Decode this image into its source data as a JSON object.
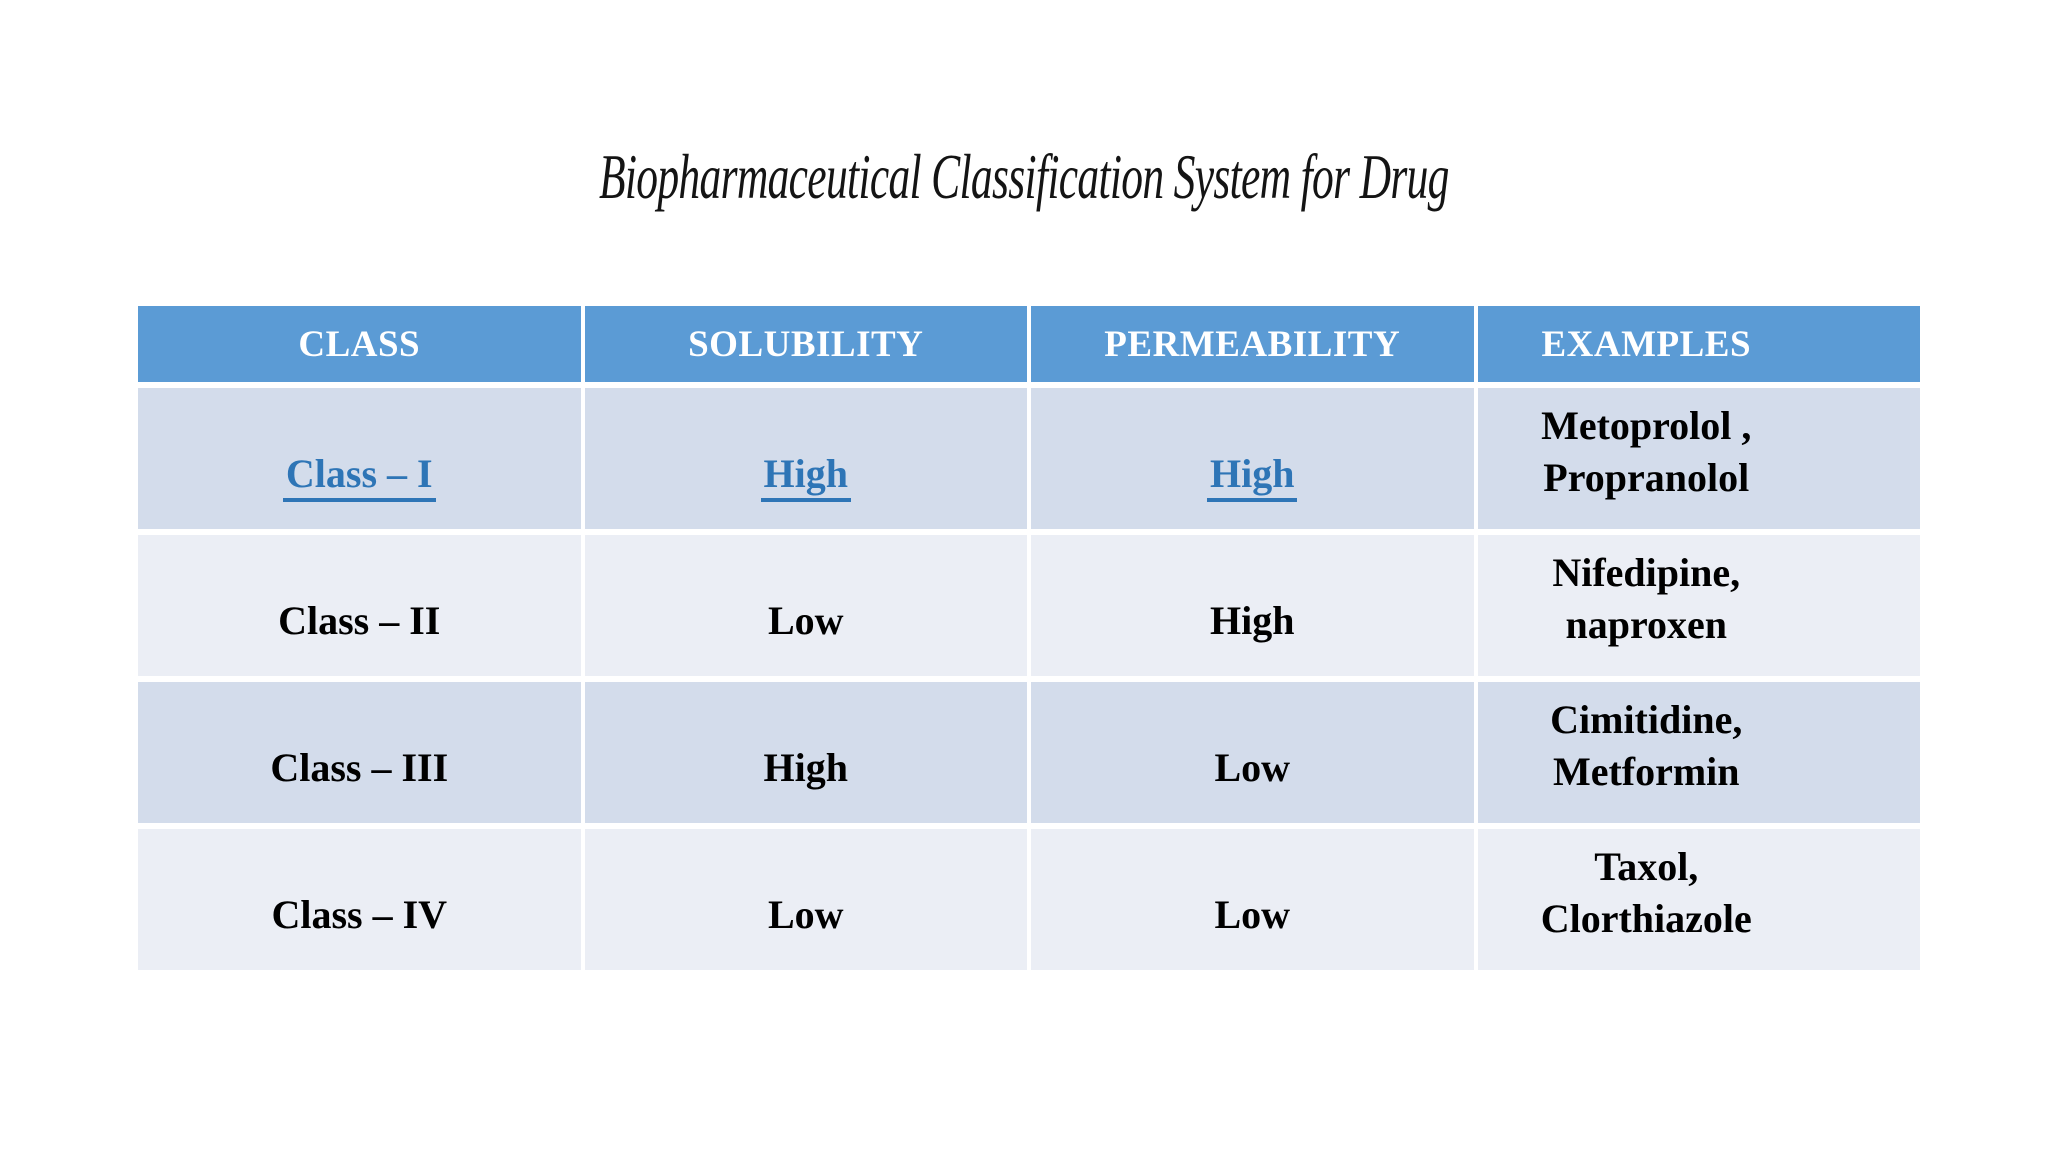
{
  "title": "Biopharmaceutical Classification System for Drug",
  "colors": {
    "header-bg": "#5B9BD5",
    "header-text": "#FFFFFF",
    "band-a": "#D3DCEB",
    "band-b": "#EBEEF5",
    "link": "#2E75B6",
    "warn": "#FF0000",
    "body-text": "#000000"
  },
  "table": {
    "headers": [
      "CLASS",
      "SOLUBILITY",
      "PERMEABILITY",
      "EXAMPLES"
    ],
    "rows": [
      {
        "class": "Class – I",
        "solubility": "High",
        "permeability": "High",
        "examples": "Metoprolol ,\nPropranolol"
      },
      {
        "class": "Class – II",
        "solubility": "Low",
        "permeability": "High",
        "examples": "Nifedipine,\nnaproxen"
      },
      {
        "class": "Class – III",
        "solubility": "High",
        "permeability": "Low",
        "examples": "Cimitidine,\nMetformin"
      },
      {
        "class": "Class – IV",
        "solubility": "Low",
        "permeability": "Low",
        "examples": "Taxol,\nClorthiazole"
      }
    ]
  }
}
